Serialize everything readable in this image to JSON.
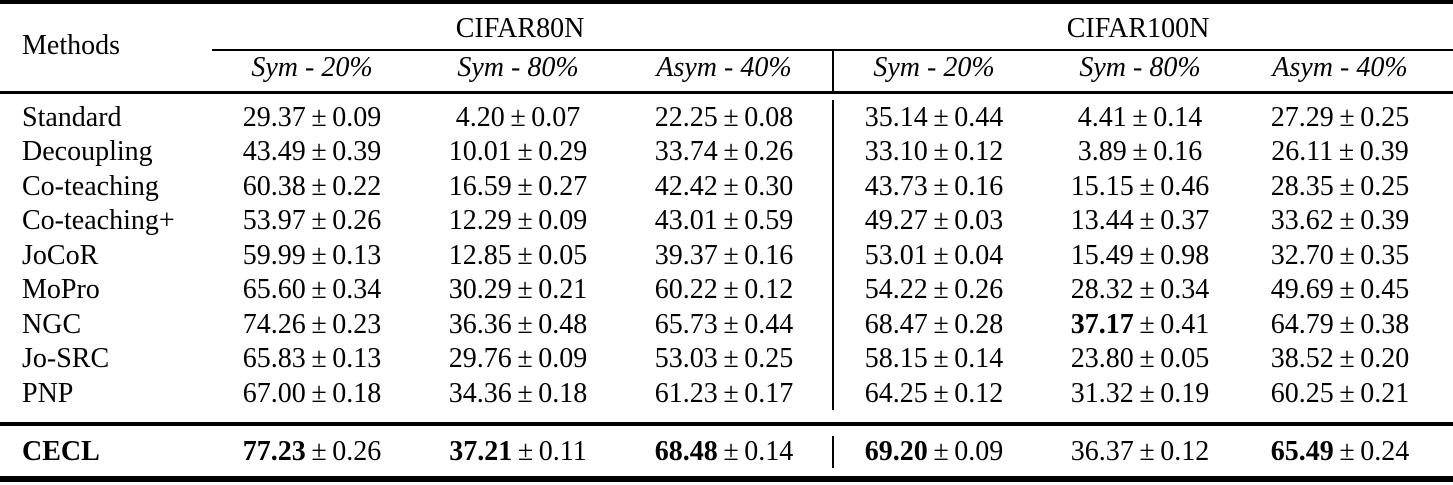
{
  "table": {
    "method_header": "Methods",
    "pm": "±",
    "groups": [
      "CIFAR80N",
      "CIFAR100N"
    ],
    "subheaders": [
      "Sym - 20%",
      "Sym - 80%",
      "Asym - 40%",
      "Sym - 20%",
      "Sym - 80%",
      "Asym - 40%"
    ],
    "rows": [
      {
        "method": "Standard",
        "bold": false,
        "cells": [
          [
            "29.37",
            "0.09",
            false
          ],
          [
            "4.20",
            "0.07",
            false
          ],
          [
            "22.25",
            "0.08",
            false
          ],
          [
            "35.14",
            "0.44",
            false
          ],
          [
            "4.41",
            "0.14",
            false
          ],
          [
            "27.29",
            "0.25",
            false
          ]
        ]
      },
      {
        "method": "Decoupling",
        "bold": false,
        "cells": [
          [
            "43.49",
            "0.39",
            false
          ],
          [
            "10.01",
            "0.29",
            false
          ],
          [
            "33.74",
            "0.26",
            false
          ],
          [
            "33.10",
            "0.12",
            false
          ],
          [
            "3.89",
            "0.16",
            false
          ],
          [
            "26.11",
            "0.39",
            false
          ]
        ]
      },
      {
        "method": "Co-teaching",
        "bold": false,
        "cells": [
          [
            "60.38",
            "0.22",
            false
          ],
          [
            "16.59",
            "0.27",
            false
          ],
          [
            "42.42",
            "0.30",
            false
          ],
          [
            "43.73",
            "0.16",
            false
          ],
          [
            "15.15",
            "0.46",
            false
          ],
          [
            "28.35",
            "0.25",
            false
          ]
        ]
      },
      {
        "method": "Co-teaching+",
        "bold": false,
        "cells": [
          [
            "53.97",
            "0.26",
            false
          ],
          [
            "12.29",
            "0.09",
            false
          ],
          [
            "43.01",
            "0.59",
            false
          ],
          [
            "49.27",
            "0.03",
            false
          ],
          [
            "13.44",
            "0.37",
            false
          ],
          [
            "33.62",
            "0.39",
            false
          ]
        ]
      },
      {
        "method": "JoCoR",
        "bold": false,
        "cells": [
          [
            "59.99",
            "0.13",
            false
          ],
          [
            "12.85",
            "0.05",
            false
          ],
          [
            "39.37",
            "0.16",
            false
          ],
          [
            "53.01",
            "0.04",
            false
          ],
          [
            "15.49",
            "0.98",
            false
          ],
          [
            "32.70",
            "0.35",
            false
          ]
        ]
      },
      {
        "method": "MoPro",
        "bold": false,
        "cells": [
          [
            "65.60",
            "0.34",
            false
          ],
          [
            "30.29",
            "0.21",
            false
          ],
          [
            "60.22",
            "0.12",
            false
          ],
          [
            "54.22",
            "0.26",
            false
          ],
          [
            "28.32",
            "0.34",
            false
          ],
          [
            "49.69",
            "0.45",
            false
          ]
        ]
      },
      {
        "method": "NGC",
        "bold": false,
        "cells": [
          [
            "74.26",
            "0.23",
            false
          ],
          [
            "36.36",
            "0.48",
            false
          ],
          [
            "65.73",
            "0.44",
            false
          ],
          [
            "68.47",
            "0.28",
            false
          ],
          [
            "37.17",
            "0.41",
            true
          ],
          [
            "64.79",
            "0.38",
            false
          ]
        ]
      },
      {
        "method": "Jo-SRC",
        "bold": false,
        "cells": [
          [
            "65.83",
            "0.13",
            false
          ],
          [
            "29.76",
            "0.09",
            false
          ],
          [
            "53.03",
            "0.25",
            false
          ],
          [
            "58.15",
            "0.14",
            false
          ],
          [
            "23.80",
            "0.05",
            false
          ],
          [
            "38.52",
            "0.20",
            false
          ]
        ]
      },
      {
        "method": "PNP",
        "bold": false,
        "cells": [
          [
            "67.00",
            "0.18",
            false
          ],
          [
            "34.36",
            "0.18",
            false
          ],
          [
            "61.23",
            "0.17",
            false
          ],
          [
            "64.25",
            "0.12",
            false
          ],
          [
            "31.32",
            "0.19",
            false
          ],
          [
            "60.25",
            "0.21",
            false
          ]
        ]
      },
      {
        "method": "CECL",
        "bold": true,
        "cells": [
          [
            "77.23",
            "0.26",
            true
          ],
          [
            "37.21",
            "0.11",
            true
          ],
          [
            "68.48",
            "0.14",
            true
          ],
          [
            "69.20",
            "0.09",
            true
          ],
          [
            "36.37",
            "0.12",
            false
          ],
          [
            "65.49",
            "0.24",
            true
          ]
        ]
      }
    ]
  }
}
